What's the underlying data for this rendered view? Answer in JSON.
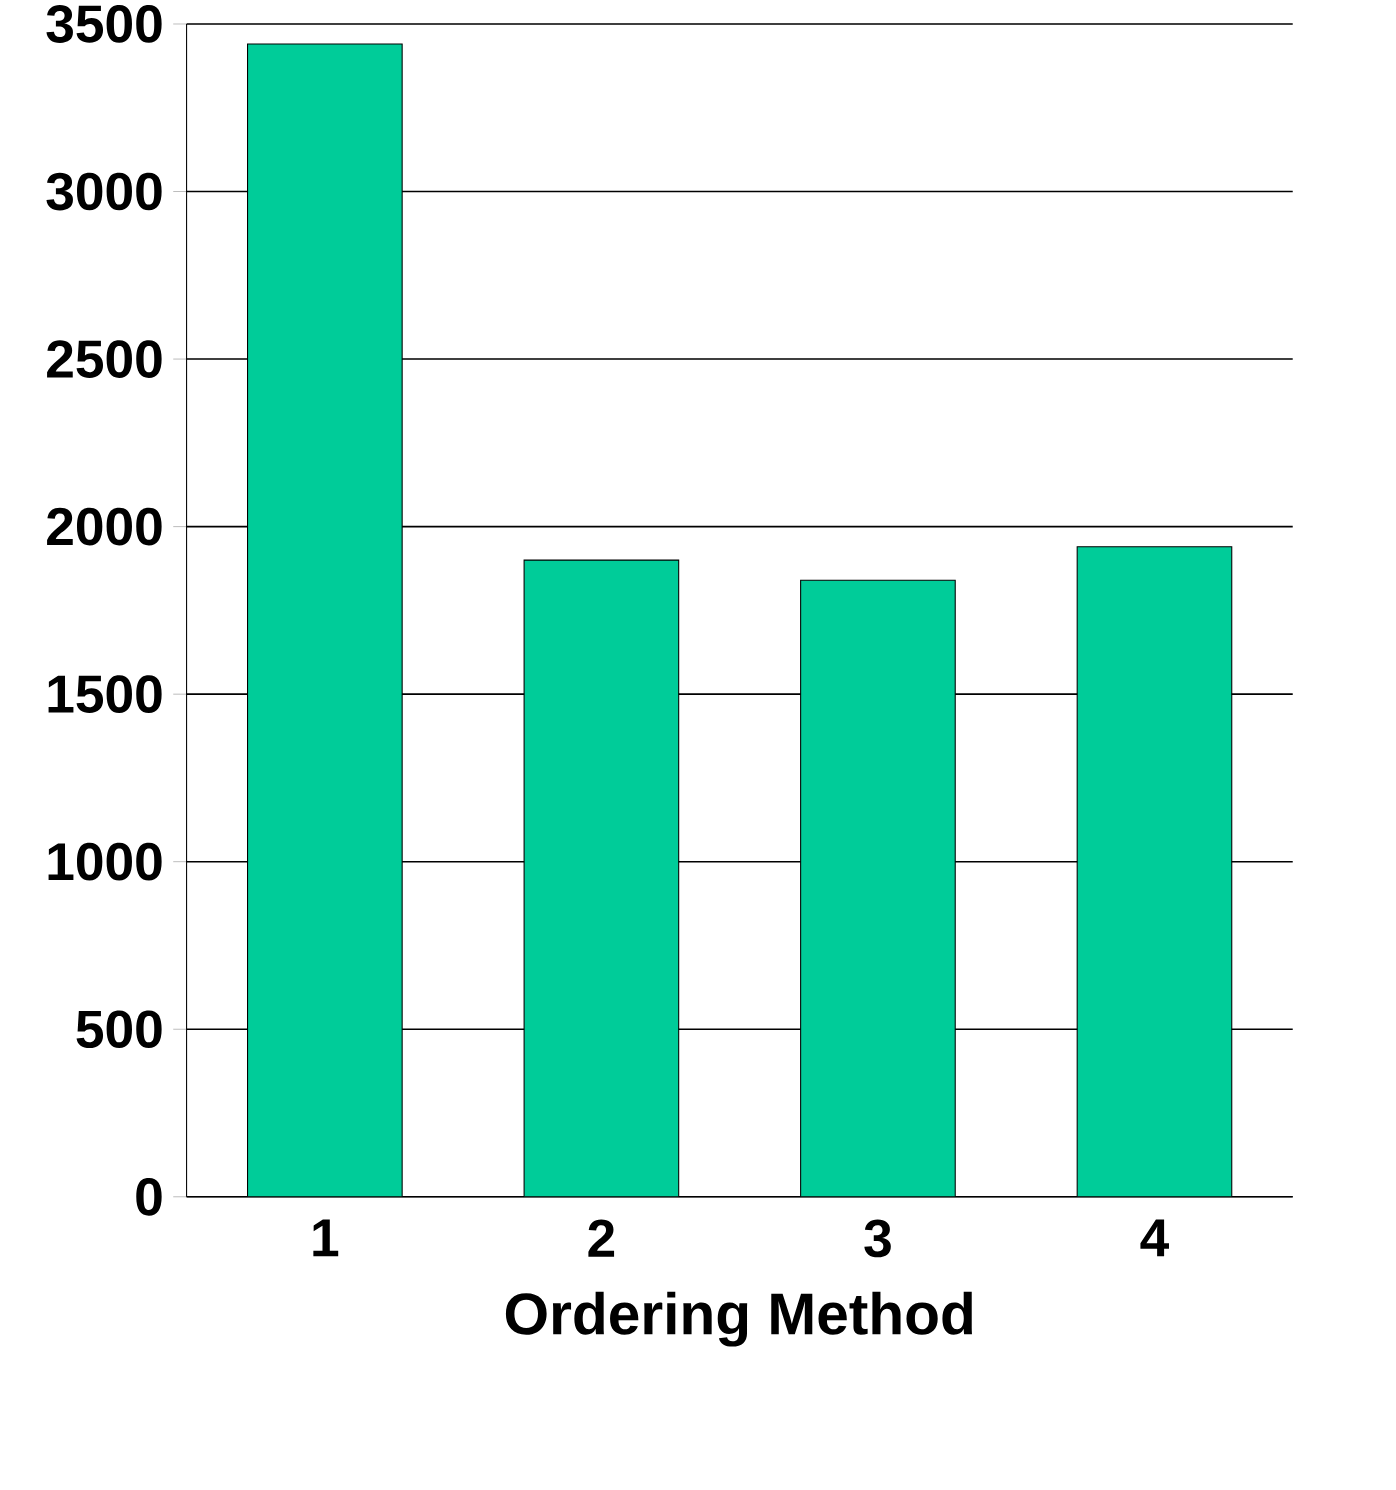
{
  "chart_data": {
    "type": "bar",
    "xlabel": "Ordering Method",
    "categories": [
      "1",
      "2",
      "3",
      "4"
    ],
    "values": [
      3440,
      1900,
      1840,
      1940
    ],
    "color": "#00cc99",
    "ylim": [
      0,
      3500
    ],
    "yticks": [
      0,
      500,
      1000,
      1500,
      2000,
      2500,
      3000,
      3500
    ],
    "grid": "y"
  }
}
